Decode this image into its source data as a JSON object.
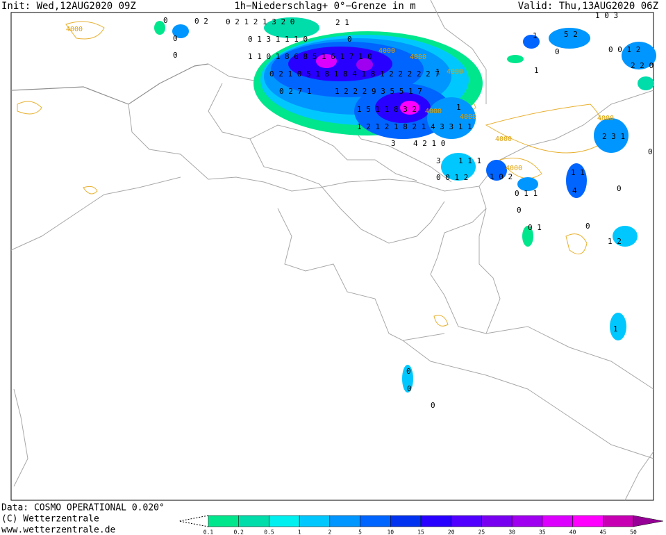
{
  "header": {
    "init": "Init: Wed,12AUG2020  09Z",
    "title": "1h−Niederschlag+  0°−Grenze  in  m",
    "valid": "Valid:  Thu,13AUG2020  06Z"
  },
  "footer": {
    "data": "Data: COSMO OPERATIONAL  0.020°",
    "copyright": "(C) Wetterzentrale",
    "url": "www.wetterzentrale.de"
  },
  "colorbar": {
    "labels": [
      0.1,
      0.2,
      0.5,
      1,
      2,
      5,
      10,
      15,
      20,
      25,
      30,
      35,
      40,
      45,
      50
    ],
    "colors": [
      "#00e68c",
      "#00dcaa",
      "#00f0f0",
      "#00c8ff",
      "#0096ff",
      "#0064ff",
      "#0032f0",
      "#2800ff",
      "#5000ff",
      "#7800f0",
      "#a000f0",
      "#dc00ff",
      "#ff00ff",
      "#c800b4",
      "#960096"
    ]
  },
  "map_labels": [
    "0",
    "0 2",
    "0 2 1 2 1 3 2 0",
    "2 1",
    "0",
    "0",
    "0 1 3 1 1 1 0",
    "0",
    "1 1 0 1 8 6 8 5 1 6 1 7 1 0",
    "0 2 1 0 5 1 8 1 8 4 1 8 1 2 2 2 2 2 7",
    "1",
    "0 2 7 1",
    "1 2 2 2 9 3 5 5 1 7",
    "1 5 1 1 8 3 2",
    "1",
    "1 2 1 2 1 8 2 1 4 3 3 1 1",
    "3",
    "4 2 1 0",
    "3",
    "1 1 1",
    "0 0 1 2",
    "1 0 2",
    "0 1 1",
    "1 1",
    "4",
    "0",
    "0",
    "0 1",
    "0",
    "1 2",
    "1",
    "0",
    "0",
    "0",
    "1 0 3",
    "1",
    "5 2",
    "0",
    "1",
    "0 0 1 2",
    "2 2 0",
    "2 3 1",
    "0"
  ],
  "contour_labels": [
    "4000",
    "4000",
    "4000",
    "4000",
    "4000",
    "4000",
    "4000",
    "4000",
    "4000"
  ]
}
